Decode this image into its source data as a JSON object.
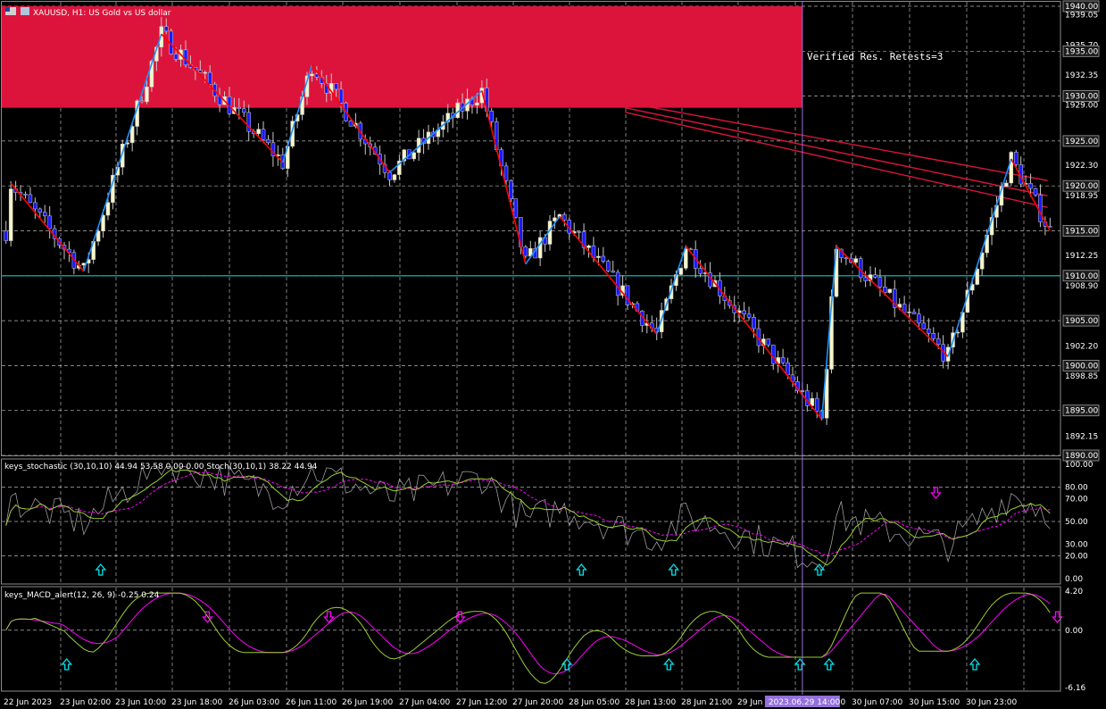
{
  "header": {
    "symbol_title": "XAUUSD, H1: US Gold vs US dollar",
    "stoch_title": "keys_stochastic (30,10,10) 44.94 53.58 0.00 0.00 Stoch(30,10,1) 38.22 44.94",
    "macd_title": "keys_MACD_alert(12, 26, 9) -0.25 0.24"
  },
  "annotation": {
    "zone_label": "Verified Res. Retests=3"
  },
  "colors": {
    "background": "#000000",
    "resistance_zone": "#dc143c",
    "support_line": "#00ced1",
    "zigzag_up": "#1e90ff",
    "zigzag_down": "#ff0000",
    "bull_candle": "#f5f5c8",
    "bear_candle": "#1a1aff",
    "grid": "#ffffff",
    "cursor_line": "#9370db",
    "stoch_main": "#9acd32",
    "stoch_signal": "#ff00ff",
    "macd_main": "#9acd32",
    "macd_signal": "#ff00ff",
    "arrow_up": "#00e5ee",
    "arrow_down": "#ff00ff"
  },
  "chart_data": [
    {
      "type": "candlestick",
      "title": "XAUUSD, H1: US Gold vs US dollar",
      "ylim": [
        1890.0,
        1940.0
      ],
      "y_ticks": [
        "1940.00",
        "1939.05",
        "1935.70",
        "1935.00",
        "1932.35",
        "1930.00",
        "1929.00",
        "1925.00",
        "1922.30",
        "1920.00",
        "1918.95",
        "1915.00",
        "1912.25",
        "1910.00",
        "1908.90",
        "1905.00",
        "1902.20",
        "1900.00",
        "1898.85",
        "1895.00",
        "1892.15",
        "1890.00"
      ],
      "y_tick_boxed": [
        "1940.00",
        "1935.00",
        "1930.00",
        "1925.00",
        "1920.00",
        "1915.00",
        "1910.00",
        "1905.00",
        "1900.00",
        "1895.00",
        "1890.00"
      ],
      "x_labels": [
        "22 Jun 2023",
        "23 Jun 02:00",
        "23 Jun 10:00",
        "23 Jun 18:00",
        "26 Jun 03:00",
        "26 Jun 11:00",
        "26 Jun 19:00",
        "27 Jun 04:00",
        "27 Jun 12:00",
        "27 Jun 20:00",
        "28 Jun 05:00",
        "28 Jun 13:00",
        "28 Jun 21:00",
        "29 Jun",
        "29 Jun 22:00",
        "30 Jun 07:00",
        "30 Jun 15:00",
        "30 Jun 23:00"
      ],
      "cursor_label": "2023.06.29 14:00",
      "resistance_zone": [
        1928.7,
        1940.0
      ],
      "support_level": 1910.0,
      "zigzag": [
        [
          1920.3,
          1,
          "d"
        ],
        [
          1910.5,
          16,
          "u"
        ],
        [
          1936.9,
          32,
          "d"
        ],
        [
          1922.6,
          57,
          "u"
        ],
        [
          1933.5,
          63,
          "d"
        ],
        [
          1921.5,
          79,
          "u"
        ],
        [
          1930.6,
          98,
          "d"
        ],
        [
          1911.3,
          107,
          "u"
        ],
        [
          1916.6,
          114,
          "d"
        ],
        [
          1903.5,
          134,
          "u"
        ],
        [
          1913.3,
          140,
          "d"
        ],
        [
          1894.0,
          168,
          "u"
        ],
        [
          1913.3,
          171,
          "d"
        ],
        [
          1901.0,
          194,
          "u"
        ],
        [
          1923.0,
          207,
          "d"
        ],
        [
          1915.0,
          215
        ]
      ],
      "trend_lines": [
        {
          "from": [
            128,
            1929.3
          ],
          "to": [
            215,
            1920.6
          ]
        },
        {
          "from": [
            128,
            1928.7
          ],
          "to": [
            215,
            1918.9
          ]
        },
        {
          "from": [
            128,
            1928.2
          ],
          "to": [
            215,
            1917.6
          ]
        }
      ]
    },
    {
      "type": "line",
      "title": "keys_stochastic (30,10,10)",
      "ylim": [
        0,
        100
      ],
      "y_ticks": [
        "100.00",
        "80.00",
        "70.00",
        "50.00",
        "30.00",
        "20.00",
        "0.00"
      ],
      "up_arrows": [
        20,
        119,
        138,
        168
      ],
      "down_arrows": [
        192
      ]
    },
    {
      "type": "line",
      "title": "keys_MACD_alert(12, 26, 9)",
      "ylim": [
        -6.16,
        4.2
      ],
      "y_ticks": [
        "4.20",
        "0.00",
        "-6.16"
      ],
      "up_arrows": [
        13,
        116,
        137,
        164,
        170,
        200
      ],
      "down_arrows": [
        42,
        67,
        94,
        217
      ]
    }
  ]
}
